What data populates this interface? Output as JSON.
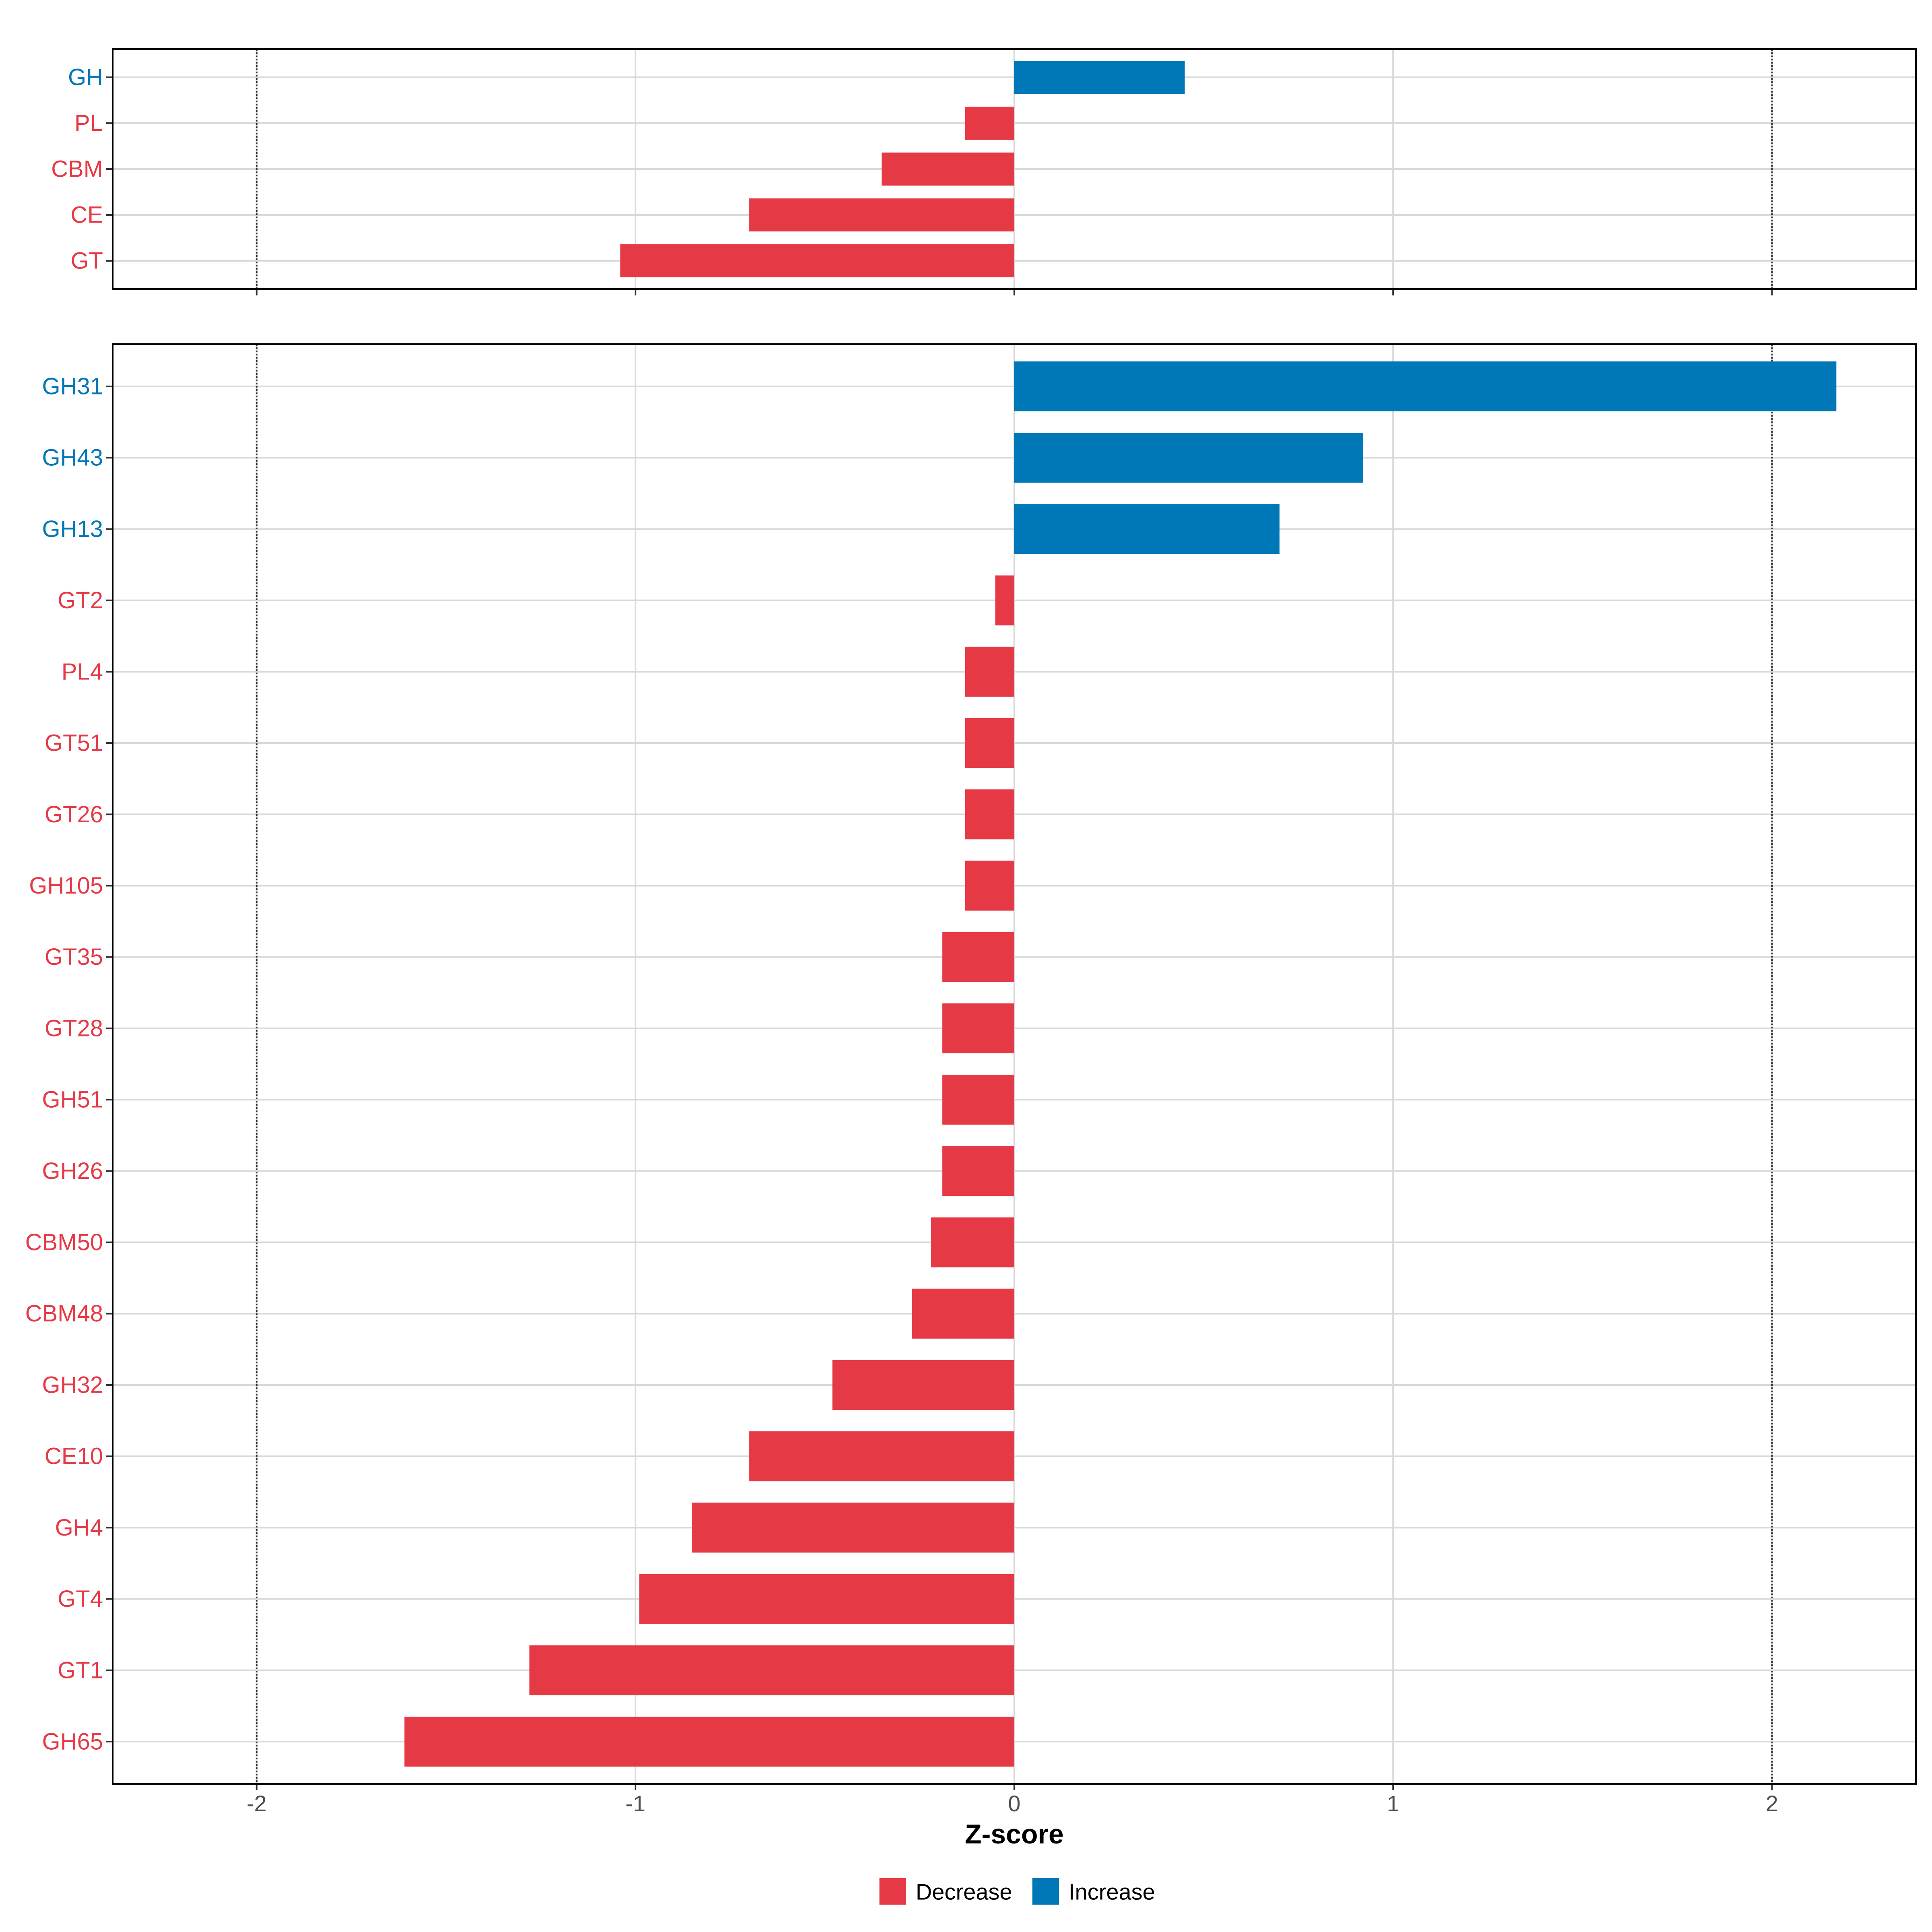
{
  "colors": {
    "Decrease": "#e63946",
    "Increase": "#0077b6",
    "grid": "#d9d9d9",
    "refline": "#333333",
    "panel_border": "#000000"
  },
  "chart_data": {
    "type": "bar",
    "orientation": "horizontal",
    "xlabel": "Z-score",
    "xlim": [
      -2.38,
      2.38
    ],
    "xticks": [
      -2,
      -1,
      0,
      1,
      2
    ],
    "xtick_labels": [
      "-2",
      "-1",
      "0",
      "1",
      "2"
    ],
    "reference_lines": [
      -2,
      2
    ],
    "legend": {
      "position": "bottom",
      "entries": [
        {
          "key": "Decrease",
          "label": "Decrease"
        },
        {
          "key": "Increase",
          "label": "Increase"
        }
      ]
    },
    "panels": [
      {
        "id": "class-level",
        "categories": [
          "GH",
          "PL",
          "CBM",
          "CE",
          "GT"
        ],
        "values": [
          0.45,
          -0.13,
          -0.35,
          -0.7,
          -1.04
        ],
        "groups": [
          "Increase",
          "Decrease",
          "Decrease",
          "Decrease",
          "Decrease"
        ]
      },
      {
        "id": "family-level",
        "categories": [
          "GH31",
          "GH43",
          "GH13",
          "GT2",
          "PL4",
          "GT51",
          "GT26",
          "GH105",
          "GT35",
          "GT28",
          "GH51",
          "GH26",
          "CBM50",
          "CBM48",
          "GH32",
          "CE10",
          "GH4",
          "GT4",
          "GT1",
          "GH65"
        ],
        "values": [
          2.17,
          0.92,
          0.7,
          -0.05,
          -0.13,
          -0.13,
          -0.13,
          -0.13,
          -0.19,
          -0.19,
          -0.19,
          -0.19,
          -0.22,
          -0.27,
          -0.48,
          -0.7,
          -0.85,
          -0.99,
          -1.28,
          -1.61
        ],
        "groups": [
          "Increase",
          "Increase",
          "Increase",
          "Decrease",
          "Decrease",
          "Decrease",
          "Decrease",
          "Decrease",
          "Decrease",
          "Decrease",
          "Decrease",
          "Decrease",
          "Decrease",
          "Decrease",
          "Decrease",
          "Decrease",
          "Decrease",
          "Decrease",
          "Decrease",
          "Decrease"
        ]
      }
    ]
  }
}
